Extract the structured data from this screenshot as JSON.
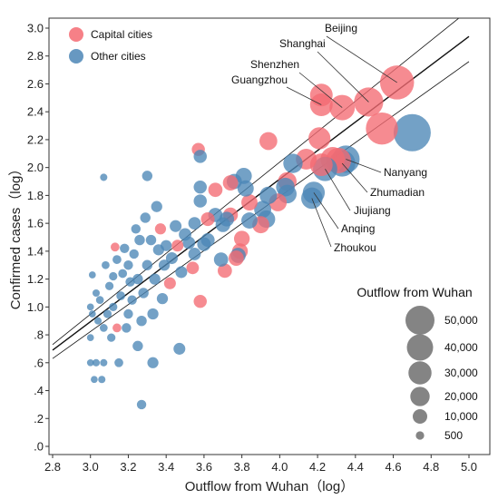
{
  "chart_data": {
    "type": "scatter",
    "title": "",
    "xlabel": "Outflow from Wuhan（log）",
    "ylabel": "Confirmed cases（log）",
    "xlim": [
      2.8,
      5.0
    ],
    "ylim": [
      0.0,
      3.1
    ],
    "x_ticks": [
      2.8,
      3.0,
      3.2,
      3.4,
      3.6,
      3.8,
      4.0,
      4.2,
      4.4,
      4.6,
      4.8,
      5.0
    ],
    "x_tick_labels": [
      "2.8",
      "3.0",
      "3.2",
      "3.4",
      "3.6",
      "3.8",
      "4.0",
      "4.2",
      "4.4",
      "4.6",
      "4.8",
      "5.0"
    ],
    "y_ticks": [
      0.0,
      0.2,
      0.4,
      0.6,
      0.8,
      1.0,
      1.2,
      1.4,
      1.6,
      1.8,
      2.0,
      2.2,
      2.4,
      2.6,
      2.8,
      3.0
    ],
    "y_tick_labels": [
      ".0",
      ".2",
      ".4",
      ".6",
      ".8",
      "1.0",
      "1.2",
      "1.4",
      "1.6",
      "1.8",
      "2.0",
      "2.2",
      "2.4",
      "2.6",
      "2.8",
      "3.0"
    ],
    "grid": false,
    "legend_position": "top-left",
    "colors": {
      "capital": "#f46a72",
      "other": "#4c86b6"
    },
    "series": [
      {
        "name": "Capital cities",
        "key": "capital",
        "color": "#f46a72"
      },
      {
        "name": "Other cities",
        "key": "other",
        "color": "#4c86b6"
      }
    ],
    "size_legend": {
      "title": "Outflow from Wuhan",
      "entries": [
        {
          "label": "50,000",
          "value": 50000
        },
        {
          "label": "40,000",
          "value": 40000
        },
        {
          "label": "30,000",
          "value": 30000
        },
        {
          "label": "20,000",
          "value": 20000
        },
        {
          "label": "10,000",
          "value": 10000
        },
        {
          "label": "500",
          "value": 500
        }
      ]
    },
    "fit_lines": [
      {
        "role": "fit",
        "points": [
          [
            2.8,
            0.69
          ],
          [
            5.0,
            2.94
          ]
        ]
      },
      {
        "role": "upper",
        "points": [
          [
            2.8,
            0.73
          ],
          [
            5.0,
            3.13
          ]
        ]
      },
      {
        "role": "lower",
        "points": [
          [
            2.8,
            0.63
          ],
          [
            5.0,
            2.76
          ]
        ]
      }
    ],
    "labeled_points": [
      {
        "label": "Beijing",
        "x": 4.62,
        "y": 2.61,
        "group": "capital"
      },
      {
        "label": "Shanghai",
        "x": 4.47,
        "y": 2.47,
        "group": "capital"
      },
      {
        "label": "Shenzhen",
        "x": 4.33,
        "y": 2.43,
        "group": "capital"
      },
      {
        "label": "Guangzhou",
        "x": 4.22,
        "y": 2.45,
        "group": "capital"
      },
      {
        "label": "Nanyang",
        "x": 4.35,
        "y": 2.06,
        "group": "other"
      },
      {
        "label": "Zhumadian",
        "x": 4.33,
        "y": 2.03,
        "group": "other"
      },
      {
        "label": "Jiujiang",
        "x": 4.24,
        "y": 1.99,
        "group": "other"
      },
      {
        "label": "Anqing",
        "x": 4.18,
        "y": 1.82,
        "group": "other"
      },
      {
        "label": "Zhoukou",
        "x": 4.17,
        "y": 1.78,
        "group": "other"
      }
    ],
    "points": [
      {
        "x": 4.62,
        "y": 2.61,
        "size": 41000,
        "group": "capital"
      },
      {
        "x": 4.47,
        "y": 2.47,
        "size": 29000,
        "group": "capital"
      },
      {
        "x": 4.33,
        "y": 2.43,
        "size": 21000,
        "group": "capital"
      },
      {
        "x": 4.22,
        "y": 2.52,
        "size": 16000,
        "group": "capital"
      },
      {
        "x": 4.22,
        "y": 2.45,
        "size": 16000,
        "group": "capital"
      },
      {
        "x": 4.54,
        "y": 2.28,
        "size": 36000,
        "group": "capital"
      },
      {
        "x": 4.7,
        "y": 2.25,
        "size": 50000,
        "group": "other"
      },
      {
        "x": 4.21,
        "y": 2.21,
        "size": 15000,
        "group": "capital"
      },
      {
        "x": 3.94,
        "y": 2.19,
        "size": 9000,
        "group": "capital"
      },
      {
        "x": 4.28,
        "y": 2.06,
        "size": 19000,
        "group": "capital"
      },
      {
        "x": 4.31,
        "y": 2.05,
        "size": 21000,
        "group": "capital"
      },
      {
        "x": 4.14,
        "y": 2.06,
        "size": 13000,
        "group": "capital"
      },
      {
        "x": 4.22,
        "y": 2.02,
        "size": 16000,
        "group": "capital"
      },
      {
        "x": 4.35,
        "y": 2.06,
        "size": 25000,
        "group": "other"
      },
      {
        "x": 4.33,
        "y": 2.03,
        "size": 23000,
        "group": "other"
      },
      {
        "x": 4.24,
        "y": 1.99,
        "size": 19000,
        "group": "other"
      },
      {
        "x": 4.18,
        "y": 1.82,
        "size": 15000,
        "group": "other"
      },
      {
        "x": 4.17,
        "y": 1.78,
        "size": 14000,
        "group": "other"
      },
      {
        "x": 4.07,
        "y": 2.03,
        "size": 11000,
        "group": "other"
      },
      {
        "x": 4.04,
        "y": 1.9,
        "size": 10000,
        "group": "capital"
      },
      {
        "x": 4.03,
        "y": 1.86,
        "size": 10000,
        "group": "other"
      },
      {
        "x": 4.04,
        "y": 1.81,
        "size": 10000,
        "group": "other"
      },
      {
        "x": 3.99,
        "y": 1.75,
        "size": 9000,
        "group": "capital"
      },
      {
        "x": 3.94,
        "y": 1.8,
        "size": 8500,
        "group": "other"
      },
      {
        "x": 3.91,
        "y": 1.7,
        "size": 8000,
        "group": "other"
      },
      {
        "x": 3.93,
        "y": 1.63,
        "size": 8500,
        "group": "other"
      },
      {
        "x": 3.9,
        "y": 1.59,
        "size": 8000,
        "group": "capital"
      },
      {
        "x": 3.84,
        "y": 1.75,
        "size": 7000,
        "group": "capital"
      },
      {
        "x": 3.82,
        "y": 1.85,
        "size": 7000,
        "group": "other"
      },
      {
        "x": 3.81,
        "y": 1.94,
        "size": 7000,
        "group": "other"
      },
      {
        "x": 3.84,
        "y": 1.62,
        "size": 7000,
        "group": "other"
      },
      {
        "x": 3.8,
        "y": 1.49,
        "size": 6500,
        "group": "capital"
      },
      {
        "x": 3.79,
        "y": 1.4,
        "size": 6500,
        "group": "capital"
      },
      {
        "x": 3.78,
        "y": 1.37,
        "size": 6000,
        "group": "other"
      },
      {
        "x": 3.77,
        "y": 1.35,
        "size": 6000,
        "group": "capital"
      },
      {
        "x": 3.76,
        "y": 1.9,
        "size": 6000,
        "group": "other"
      },
      {
        "x": 3.74,
        "y": 1.89,
        "size": 6000,
        "group": "capital"
      },
      {
        "x": 3.74,
        "y": 1.66,
        "size": 5500,
        "group": "capital"
      },
      {
        "x": 3.72,
        "y": 1.63,
        "size": 5500,
        "group": "other"
      },
      {
        "x": 3.7,
        "y": 1.59,
        "size": 5500,
        "group": "other"
      },
      {
        "x": 3.71,
        "y": 1.26,
        "size": 5000,
        "group": "capital"
      },
      {
        "x": 3.69,
        "y": 1.34,
        "size": 5000,
        "group": "other"
      },
      {
        "x": 3.66,
        "y": 1.84,
        "size": 5000,
        "group": "capital"
      },
      {
        "x": 3.66,
        "y": 1.66,
        "size": 5000,
        "group": "other"
      },
      {
        "x": 3.62,
        "y": 1.63,
        "size": 4500,
        "group": "capital"
      },
      {
        "x": 3.62,
        "y": 1.48,
        "size": 4500,
        "group": "other"
      },
      {
        "x": 3.6,
        "y": 1.45,
        "size": 4500,
        "group": "other"
      },
      {
        "x": 3.58,
        "y": 1.86,
        "size": 4000,
        "group": "other"
      },
      {
        "x": 3.58,
        "y": 1.76,
        "size": 4000,
        "group": "other"
      },
      {
        "x": 3.57,
        "y": 2.13,
        "size": 4000,
        "group": "capital"
      },
      {
        "x": 3.58,
        "y": 2.08,
        "size": 4000,
        "group": "other"
      },
      {
        "x": 3.58,
        "y": 1.04,
        "size": 4000,
        "group": "capital"
      },
      {
        "x": 3.55,
        "y": 1.6,
        "size": 3500,
        "group": "other"
      },
      {
        "x": 3.55,
        "y": 1.38,
        "size": 3500,
        "group": "other"
      },
      {
        "x": 3.54,
        "y": 1.28,
        "size": 3500,
        "group": "capital"
      },
      {
        "x": 3.52,
        "y": 1.46,
        "size": 3500,
        "group": "other"
      },
      {
        "x": 3.5,
        "y": 1.52,
        "size": 3500,
        "group": "other"
      },
      {
        "x": 3.48,
        "y": 1.25,
        "size": 3000,
        "group": "other"
      },
      {
        "x": 3.47,
        "y": 0.7,
        "size": 3000,
        "group": "other"
      },
      {
        "x": 3.46,
        "y": 1.44,
        "size": 3000,
        "group": "capital"
      },
      {
        "x": 3.45,
        "y": 1.58,
        "size": 3000,
        "group": "other"
      },
      {
        "x": 3.43,
        "y": 1.35,
        "size": 3000,
        "group": "other"
      },
      {
        "x": 3.42,
        "y": 1.17,
        "size": 3000,
        "group": "capital"
      },
      {
        "x": 3.4,
        "y": 1.44,
        "size": 2500,
        "group": "other"
      },
      {
        "x": 3.39,
        "y": 1.3,
        "size": 2500,
        "group": "other"
      },
      {
        "x": 3.38,
        "y": 1.06,
        "size": 2500,
        "group": "other"
      },
      {
        "x": 3.37,
        "y": 1.56,
        "size": 2500,
        "group": "capital"
      },
      {
        "x": 3.36,
        "y": 1.41,
        "size": 2500,
        "group": "other"
      },
      {
        "x": 3.35,
        "y": 1.72,
        "size": 2500,
        "group": "other"
      },
      {
        "x": 3.34,
        "y": 1.2,
        "size": 2500,
        "group": "other"
      },
      {
        "x": 3.33,
        "y": 0.95,
        "size": 2500,
        "group": "other"
      },
      {
        "x": 3.33,
        "y": 0.6,
        "size": 2500,
        "group": "other"
      },
      {
        "x": 3.32,
        "y": 1.48,
        "size": 2000,
        "group": "other"
      },
      {
        "x": 3.3,
        "y": 1.94,
        "size": 2000,
        "group": "other"
      },
      {
        "x": 3.3,
        "y": 1.3,
        "size": 2000,
        "group": "other"
      },
      {
        "x": 3.29,
        "y": 1.64,
        "size": 2000,
        "group": "other"
      },
      {
        "x": 3.28,
        "y": 1.1,
        "size": 2000,
        "group": "other"
      },
      {
        "x": 3.27,
        "y": 0.9,
        "size": 2000,
        "group": "other"
      },
      {
        "x": 3.27,
        "y": 0.3,
        "size": 1500,
        "group": "other"
      },
      {
        "x": 3.26,
        "y": 1.48,
        "size": 2000,
        "group": "other"
      },
      {
        "x": 3.25,
        "y": 1.2,
        "size": 2000,
        "group": "other"
      },
      {
        "x": 3.25,
        "y": 0.72,
        "size": 2000,
        "group": "other"
      },
      {
        "x": 3.24,
        "y": 1.56,
        "size": 1500,
        "group": "other"
      },
      {
        "x": 3.23,
        "y": 1.38,
        "size": 1500,
        "group": "other"
      },
      {
        "x": 3.22,
        "y": 1.05,
        "size": 1500,
        "group": "other"
      },
      {
        "x": 3.21,
        "y": 1.18,
        "size": 1500,
        "group": "other"
      },
      {
        "x": 3.2,
        "y": 1.3,
        "size": 1500,
        "group": "other"
      },
      {
        "x": 3.2,
        "y": 0.95,
        "size": 1500,
        "group": "other"
      },
      {
        "x": 3.19,
        "y": 0.85,
        "size": 1500,
        "group": "other"
      },
      {
        "x": 3.18,
        "y": 1.42,
        "size": 1500,
        "group": "other"
      },
      {
        "x": 3.17,
        "y": 1.24,
        "size": 1200,
        "group": "other"
      },
      {
        "x": 3.16,
        "y": 1.08,
        "size": 1200,
        "group": "other"
      },
      {
        "x": 3.15,
        "y": 0.6,
        "size": 1200,
        "group": "other"
      },
      {
        "x": 3.14,
        "y": 0.85,
        "size": 1200,
        "group": "capital"
      },
      {
        "x": 3.14,
        "y": 1.34,
        "size": 1200,
        "group": "other"
      },
      {
        "x": 3.13,
        "y": 1.43,
        "size": 1200,
        "group": "capital"
      },
      {
        "x": 3.12,
        "y": 1.0,
        "size": 1000,
        "group": "other"
      },
      {
        "x": 3.12,
        "y": 1.22,
        "size": 1000,
        "group": "other"
      },
      {
        "x": 3.11,
        "y": 0.78,
        "size": 1000,
        "group": "other"
      },
      {
        "x": 3.1,
        "y": 1.15,
        "size": 1000,
        "group": "other"
      },
      {
        "x": 3.09,
        "y": 0.95,
        "size": 1000,
        "group": "other"
      },
      {
        "x": 3.08,
        "y": 1.3,
        "size": 800,
        "group": "other"
      },
      {
        "x": 3.07,
        "y": 0.85,
        "size": 800,
        "group": "other"
      },
      {
        "x": 3.07,
        "y": 1.93,
        "size": 600,
        "group": "other"
      },
      {
        "x": 3.07,
        "y": 0.6,
        "size": 600,
        "group": "other"
      },
      {
        "x": 3.06,
        "y": 0.48,
        "size": 600,
        "group": "other"
      },
      {
        "x": 3.05,
        "y": 1.05,
        "size": 800,
        "group": "other"
      },
      {
        "x": 3.04,
        "y": 0.9,
        "size": 600,
        "group": "other"
      },
      {
        "x": 3.03,
        "y": 0.6,
        "size": 600,
        "group": "other"
      },
      {
        "x": 3.03,
        "y": 1.1,
        "size": 600,
        "group": "other"
      },
      {
        "x": 3.02,
        "y": 0.48,
        "size": 500,
        "group": "other"
      },
      {
        "x": 3.01,
        "y": 0.95,
        "size": 500,
        "group": "other"
      },
      {
        "x": 3.01,
        "y": 1.23,
        "size": 500,
        "group": "other"
      },
      {
        "x": 3.0,
        "y": 0.6,
        "size": 500,
        "group": "other"
      },
      {
        "x": 3.0,
        "y": 0.78,
        "size": 500,
        "group": "other"
      },
      {
        "x": 3.0,
        "y": 1.0,
        "size": 500,
        "group": "other"
      }
    ]
  }
}
